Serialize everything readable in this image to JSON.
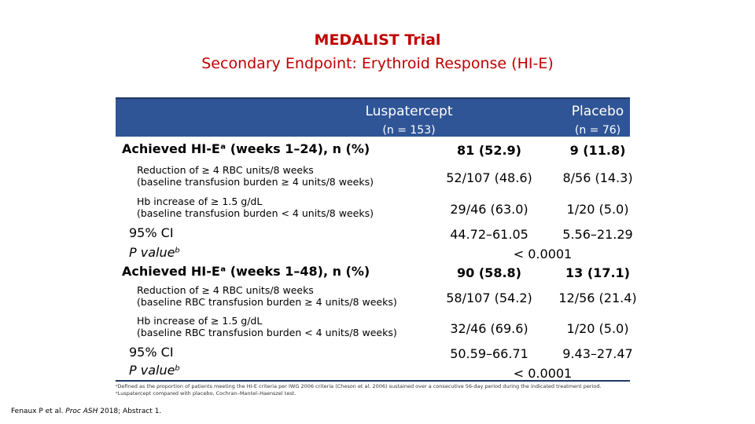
{
  "title": {
    "line1": "MEDALIST Trial",
    "line2": "Secondary Endpoint: Erythroid Response (HI-E)"
  },
  "columns": {
    "luspatercept": {
      "name": "Luspatercept",
      "n": "(n = 153)"
    },
    "placebo": {
      "name": "Placebo",
      "n": "(n = 76)"
    }
  },
  "rows": [
    {
      "label": "Achieved HI-Eᵃ (weeks 1–24), n (%)",
      "lus": "81 (52.9)",
      "pla": "9 (11.8)"
    },
    {
      "label": "Reduction of ≥ 4 RBC units/8 weeks\n(baseline transfusion burden ≥ 4 units/8 weeks)",
      "lus": "52/107 (48.6)",
      "pla": "8/56 (14.3)"
    },
    {
      "label": "Hb increase of ≥ 1.5 g/dL\n(baseline transfusion burden < 4 units/8 weeks)",
      "lus": "29/46 (63.0)",
      "pla": "1/20 (5.0)"
    },
    {
      "label": "95% CI",
      "lus": "44.72–61.05",
      "pla": "5.56–21.29"
    },
    {
      "label": "P valueᵇ",
      "value": "< 0.0001"
    },
    {
      "label": "Achieved HI-Eᵃ (weeks 1–48), n (%)",
      "lus": "90 (58.8)",
      "pla": "13 (17.1)"
    },
    {
      "label": "Reduction of ≥ 4 RBC units/8 weeks\n(baseline RBC transfusion burden ≥ 4 units/8 weeks)",
      "lus": "58/107 (54.2)",
      "pla": "12/56 (21.4)"
    },
    {
      "label": "Hb increase of ≥ 1.5 g/dL\n(baseline RBC transfusion burden < 4 units/8 weeks)",
      "lus": "32/46 (69.6)",
      "pla": "1/20 (5.0)"
    },
    {
      "label": "95% CI",
      "lus": "50.59–66.71",
      "pla": "9.43–27.47"
    },
    {
      "label": "P valueᵇ",
      "value": "< 0.0001"
    }
  ],
  "footnotes": {
    "a": "ᵃDefined as the proportion of patients meeting the HI-E criteria per IWG 2006 criteria (Cheson et al. 2006) sustained over a consecutive 56-day period during the indicated treatment period.",
    "b": "ᵇLuspatercept compared with placebo, Cochran–Mantel–Haenszel test."
  },
  "citation": {
    "authors": "Fenaux P et al. ",
    "journal": "Proc ASH",
    "rest": " 2018; Abstract 1."
  }
}
